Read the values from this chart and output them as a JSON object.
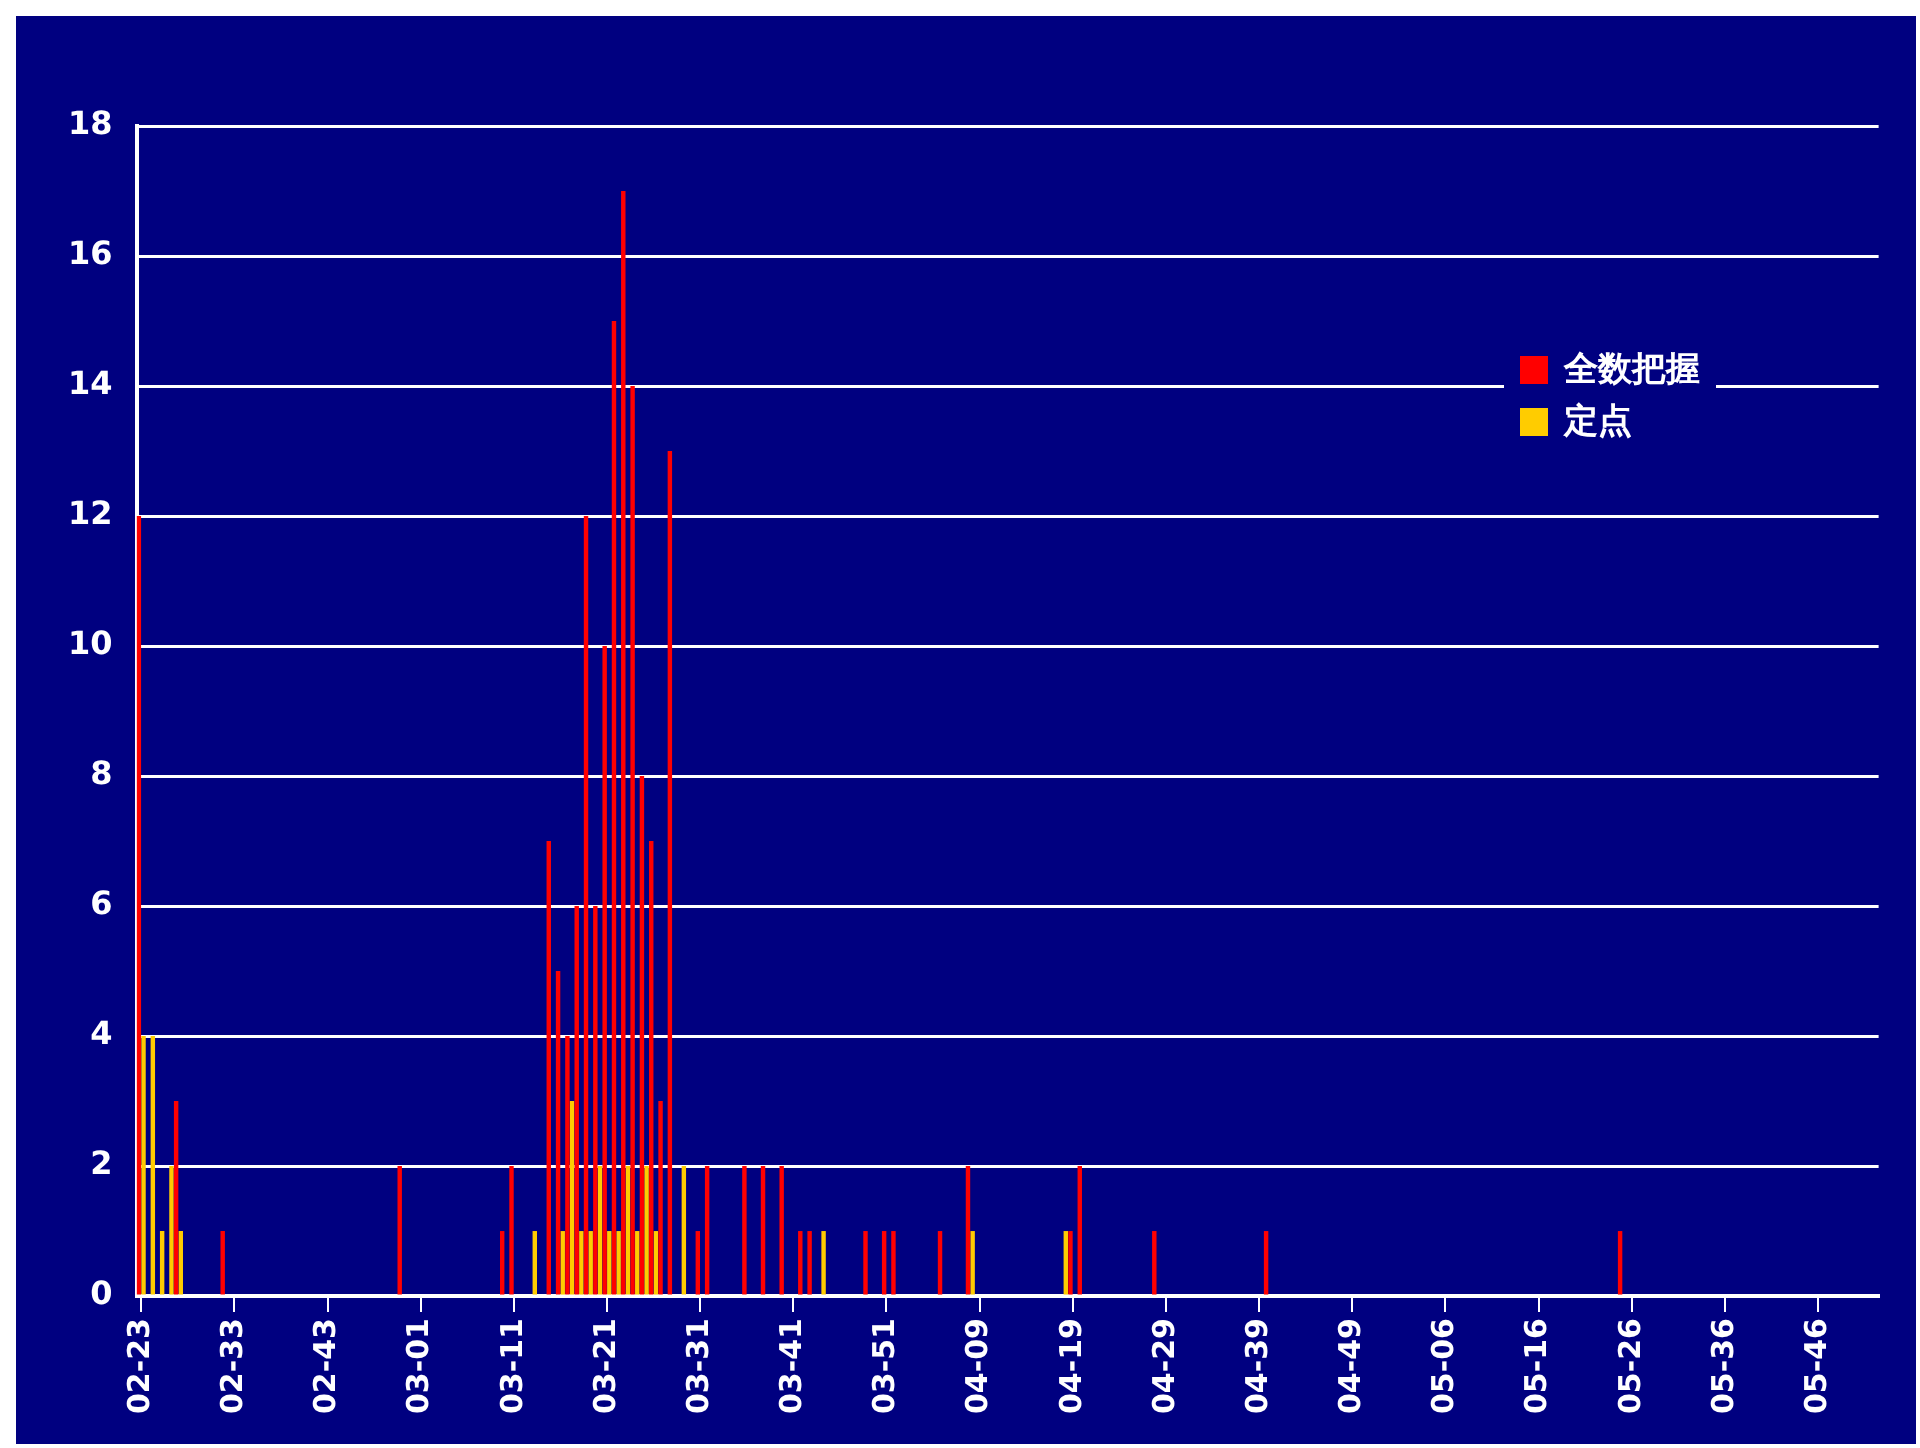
{
  "chart_data": {
    "type": "bar",
    "categories": [
      "02-23",
      null,
      null,
      null,
      null,
      null,
      null,
      null,
      null,
      null,
      "02-33",
      null,
      null,
      null,
      null,
      null,
      null,
      null,
      null,
      null,
      "02-43",
      null,
      null,
      null,
      null,
      null,
      null,
      null,
      null,
      null,
      "03-01",
      null,
      null,
      null,
      null,
      null,
      null,
      null,
      null,
      null,
      "03-11",
      null,
      null,
      null,
      null,
      null,
      null,
      null,
      null,
      null,
      "03-21",
      null,
      null,
      null,
      null,
      null,
      null,
      null,
      null,
      null,
      "03-31",
      null,
      null,
      null,
      null,
      null,
      null,
      null,
      null,
      null,
      "03-41",
      null,
      null,
      null,
      null,
      null,
      null,
      null,
      null,
      null,
      "03-51",
      null,
      null,
      null,
      null,
      null,
      null,
      null,
      null,
      null,
      "04-09",
      null,
      null,
      null,
      null,
      null,
      null,
      null,
      null,
      null,
      "04-19",
      null,
      null,
      null,
      null,
      null,
      null,
      null,
      null,
      null,
      "04-29",
      null,
      null,
      null,
      null,
      null,
      null,
      null,
      null,
      null,
      "04-39",
      null,
      null,
      null,
      null,
      null,
      null,
      null,
      null,
      null,
      "04-49",
      null,
      null,
      null,
      null,
      null,
      null,
      null,
      null,
      null,
      "05-06",
      null,
      null,
      null,
      null,
      null,
      null,
      null,
      null,
      null,
      "05-16",
      null,
      null,
      null,
      null,
      null,
      null,
      null,
      null,
      null,
      "05-26",
      null,
      null,
      null,
      null,
      null,
      null,
      null,
      null,
      null,
      "05-36",
      null,
      null,
      null,
      null,
      null,
      null,
      null,
      null,
      null,
      "05-46",
      null,
      null,
      null,
      null,
      null,
      null
    ],
    "series": [
      {
        "name": "全数把握",
        "color": "#ff0000",
        "values": [
          12,
          0,
          0,
          0,
          3,
          0,
          0,
          0,
          0,
          1,
          0,
          0,
          0,
          0,
          0,
          0,
          0,
          0,
          0,
          0,
          0,
          0,
          0,
          0,
          0,
          0,
          0,
          0,
          2,
          0,
          0,
          0,
          0,
          0,
          0,
          0,
          0,
          0,
          0,
          1,
          2,
          0,
          0,
          0,
          7,
          5,
          4,
          6,
          12,
          6,
          10,
          15,
          17,
          14,
          8,
          7,
          3,
          13,
          0,
          0,
          1,
          2,
          0,
          0,
          0,
          2,
          0,
          2,
          0,
          2,
          0,
          1,
          1,
          0,
          0,
          0,
          0,
          0,
          1,
          0,
          1,
          1,
          0,
          0,
          0,
          0,
          1,
          0,
          0,
          2,
          0,
          0,
          0,
          0,
          0,
          0,
          0,
          0,
          0,
          0,
          1,
          2,
          0,
          0,
          0,
          0,
          0,
          0,
          0,
          1,
          0,
          0,
          0,
          0,
          0,
          0,
          0,
          0,
          0,
          0,
          0,
          1,
          0,
          0,
          0,
          0,
          0,
          0,
          0,
          0,
          0,
          0,
          0,
          0,
          0,
          0,
          0,
          0,
          0,
          0,
          0,
          0,
          0,
          0,
          0,
          0,
          0,
          0,
          0,
          0,
          0,
          0,
          0,
          0,
          0,
          0,
          0,
          0,
          0,
          1,
          0,
          0,
          0,
          0,
          0,
          0,
          0,
          0,
          0,
          0,
          0,
          0,
          0,
          0,
          0,
          0,
          0,
          0,
          0,
          0,
          0,
          0,
          0,
          0,
          0,
          0,
          0
        ]
      },
      {
        "name": "定点",
        "color": "#ffcc00",
        "values": [
          4,
          4,
          1,
          2,
          1,
          0,
          0,
          0,
          0,
          0,
          0,
          0,
          0,
          0,
          0,
          0,
          0,
          0,
          0,
          0,
          0,
          0,
          0,
          0,
          0,
          0,
          0,
          0,
          0,
          0,
          0,
          0,
          0,
          0,
          0,
          0,
          0,
          0,
          0,
          0,
          0,
          0,
          1,
          0,
          0,
          1,
          3,
          1,
          1,
          2,
          1,
          1,
          2,
          1,
          2,
          1,
          0,
          0,
          2,
          0,
          0,
          0,
          0,
          0,
          0,
          0,
          0,
          0,
          0,
          0,
          0,
          0,
          0,
          1,
          0,
          0,
          0,
          0,
          0,
          0,
          0,
          0,
          0,
          0,
          0,
          0,
          0,
          0,
          0,
          1,
          0,
          0,
          0,
          0,
          0,
          0,
          0,
          0,
          0,
          1,
          0,
          0,
          0,
          0,
          0,
          0,
          0,
          0,
          0,
          0,
          0,
          0,
          0,
          0,
          0,
          0,
          0,
          0,
          0,
          0,
          0,
          0,
          0,
          0,
          0,
          0,
          0,
          0,
          0,
          0,
          0,
          0,
          0,
          0,
          0,
          0,
          0,
          0,
          0,
          0,
          0,
          0,
          0,
          0,
          0,
          0,
          0,
          0,
          0,
          0,
          0,
          0,
          0,
          0,
          0,
          0,
          0,
          0,
          0,
          0,
          0,
          0,
          0,
          0,
          0,
          0,
          0,
          0,
          0,
          0,
          0,
          0,
          0,
          0,
          0,
          0,
          0,
          0,
          0,
          0,
          0,
          0,
          0,
          0,
          0,
          0,
          0
        ]
      }
    ],
    "ylim": [
      0,
      18
    ],
    "yticks": [
      0,
      2,
      4,
      6,
      8,
      10,
      12,
      14,
      16,
      18
    ],
    "grid": "y",
    "legend": "top right"
  }
}
